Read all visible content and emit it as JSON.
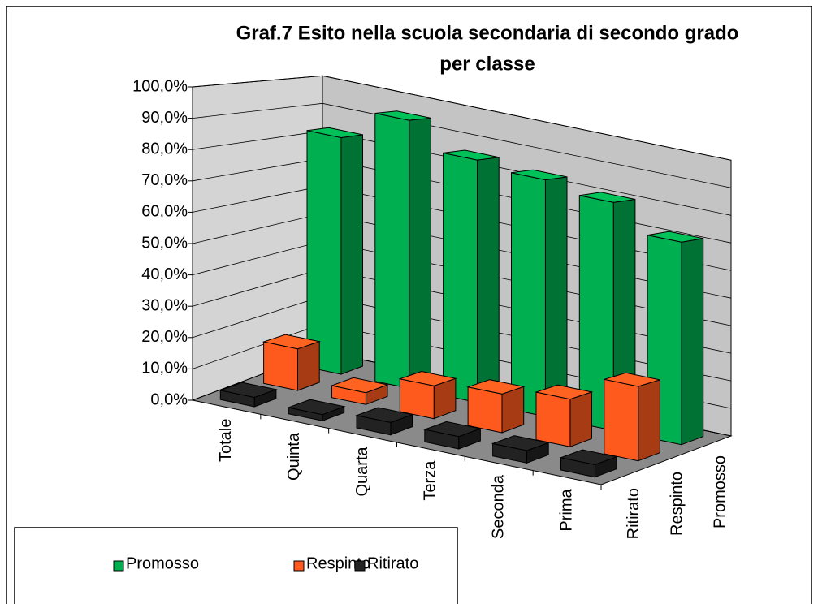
{
  "chart_data": {
    "type": "bar3d",
    "title": [
      "Graf.7 Esito nella scuola secondaria di secondo grado",
      "per classe"
    ],
    "categories": [
      "Totale",
      "Quinta",
      "Quarta",
      "Terza",
      "Seconda",
      "Prima"
    ],
    "series": [
      {
        "name": "Promosso",
        "color": "#00b050",
        "values": [
          83,
          94,
          85,
          83,
          80,
          71
        ]
      },
      {
        "name": "Respinto",
        "color": "#ff5a1e",
        "values": [
          14,
          4,
          11,
          13,
          16,
          25
        ]
      },
      {
        "name": "Ritirato",
        "color": "#222222",
        "values": [
          3,
          2,
          4,
          4,
          4,
          4
        ]
      }
    ],
    "ylim": [
      0,
      100
    ],
    "yticks": [
      {
        "value": 0,
        "label": "0,0%"
      },
      {
        "value": 10,
        "label": "10,0%"
      },
      {
        "value": 20,
        "label": "20,0%"
      },
      {
        "value": 30,
        "label": "30,0%"
      },
      {
        "value": 40,
        "label": "40,0%"
      },
      {
        "value": 50,
        "label": "50,0%"
      },
      {
        "value": 60,
        "label": "60,0%"
      },
      {
        "value": 70,
        "label": "70,0%"
      },
      {
        "value": 80,
        "label": "80,0%"
      },
      {
        "value": 90,
        "label": "90,0%"
      },
      {
        "value": 100,
        "label": "100,0%"
      }
    ],
    "grid": true,
    "legend": "bottom-left"
  }
}
